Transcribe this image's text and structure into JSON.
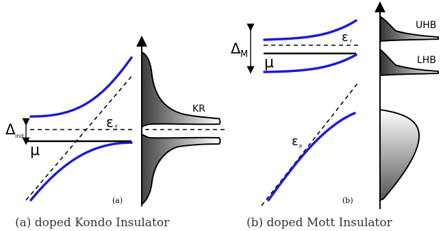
{
  "colors": {
    "band": "#1c1cd9",
    "gradient_dark": "#3a3a3a",
    "gradient_light": "#ffffff",
    "caption_text": "#333333"
  },
  "panel_a": {
    "gap_label_main": "Δ",
    "gap_label_sub": "ind",
    "mu_label": "μ",
    "fermi_label_main": "ε",
    "fermi_label_sub": "f",
    "dos_peak_label": "KR",
    "sublabel": "(a)",
    "caption": "(a)  doped Kondo Insulator"
  },
  "panel_b": {
    "gap_label_main": "Δ",
    "gap_label_sub": "M",
    "mu_label": "μ",
    "fermi_label_main": "ε",
    "fermi_label_sub": "f",
    "p_label_main": "ε",
    "p_label_sub": "p",
    "upper_band_label": "UHB",
    "lower_band_label": "LHB",
    "sublabel": "(b)",
    "caption": "(b)  doped Mott Insulator"
  }
}
